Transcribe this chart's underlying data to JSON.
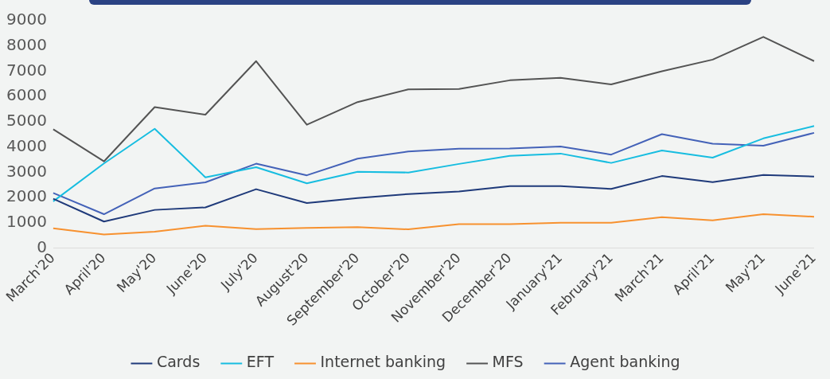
{
  "chart_data": {
    "type": "line",
    "categories": [
      "March'20",
      "April'20",
      "May'20",
      "June'20",
      "July'20",
      "August'20",
      "September'20",
      "October'20",
      "November'20",
      "December'20",
      "January'21",
      "February'21",
      "March'21",
      "April'21",
      "May'21",
      "June'21"
    ],
    "series": [
      {
        "name": "Cards",
        "color": "#1f3a7a",
        "values": [
          1950,
          1050,
          1510,
          1610,
          2330,
          1780,
          1980,
          2140,
          2240,
          2450,
          2450,
          2340,
          2850,
          2610,
          2890,
          2830
        ]
      },
      {
        "name": "EFT",
        "color": "#17bde0",
        "values": [
          1850,
          3350,
          4720,
          2800,
          3200,
          2560,
          3020,
          2990,
          3330,
          3650,
          3740,
          3370,
          3860,
          3580,
          4340,
          4830
        ]
      },
      {
        "name": "Internet banking",
        "color": "#f7912f",
        "values": [
          780,
          540,
          650,
          880,
          750,
          800,
          830,
          740,
          950,
          950,
          1000,
          1000,
          1220,
          1100,
          1340,
          1240
        ]
      },
      {
        "name": "MFS",
        "color": "#545454",
        "values": [
          4700,
          3430,
          5580,
          5280,
          7400,
          4880,
          5780,
          6280,
          6300,
          6640,
          6740,
          6480,
          7000,
          7460,
          8360,
          7400
        ]
      },
      {
        "name": "Agent banking",
        "color": "#4462b8",
        "values": [
          2180,
          1340,
          2360,
          2600,
          3340,
          2880,
          3540,
          3820,
          3930,
          3940,
          4020,
          3700,
          4510,
          4130,
          4050,
          4560
        ]
      }
    ],
    "ylim": [
      0,
      9000
    ],
    "yticks": [
      0,
      1000,
      2000,
      3000,
      4000,
      5000,
      6000,
      7000,
      8000,
      9000
    ],
    "grid": false,
    "legend": "bottom",
    "marker": "none",
    "line_style": "solid"
  }
}
